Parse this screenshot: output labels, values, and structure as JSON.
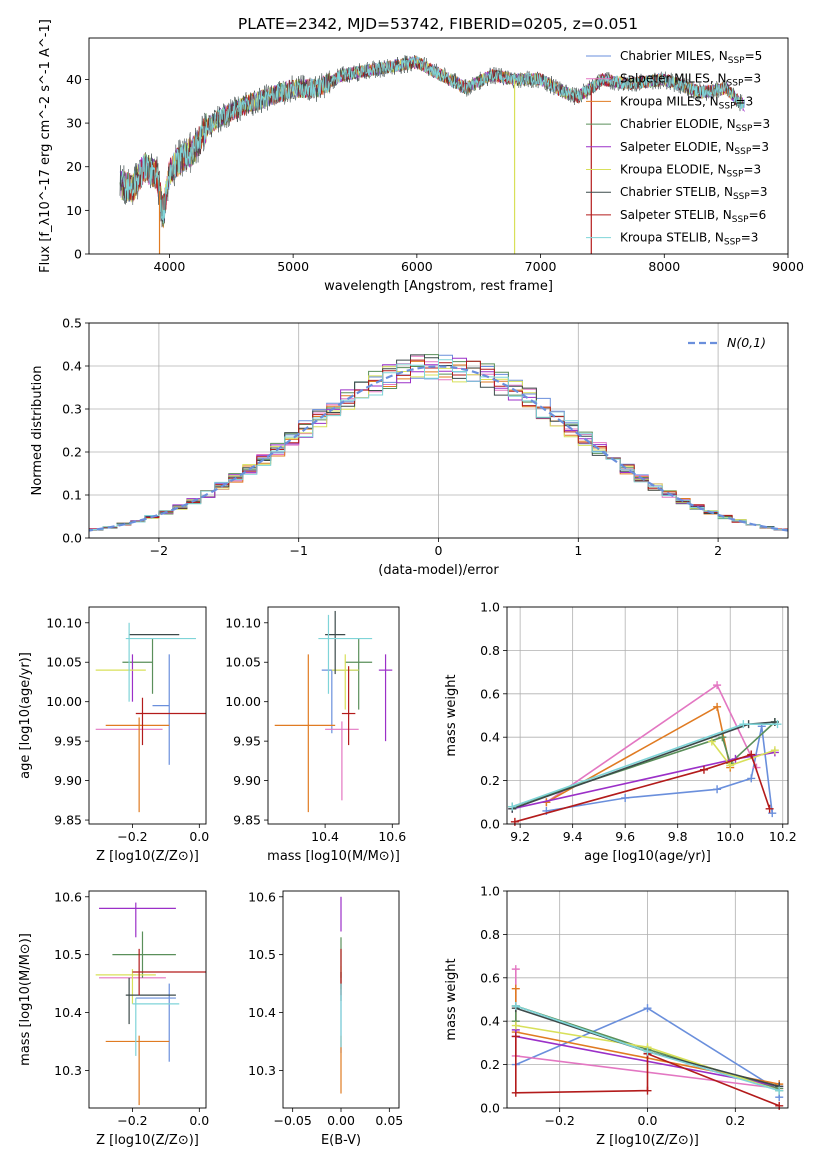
{
  "figure": {
    "title": "PLATE=2342, MJD=53742, FIBERID=0205, z=0.051"
  },
  "colors": [
    "#6a8fdc",
    "#e377c2",
    "#e07b22",
    "#5a8f5a",
    "#9b30c8",
    "#d8e05a",
    "#3c4a4a",
    "#b31b1b",
    "#7fd4d8"
  ],
  "chart_data": [
    {
      "id": "spectrum",
      "type": "line",
      "xlabel": "wavelength [Angstrom, rest frame]",
      "ylabel": "Flux [f_λ10^-17 erg cm^-2 s^-1 A^-1]",
      "xlim": [
        3350,
        9000
      ],
      "ylim": [
        0,
        49.5
      ],
      "xticks": [
        4000,
        5000,
        6000,
        7000,
        8000,
        9000
      ],
      "yticks": [
        0,
        10,
        20,
        30,
        40
      ],
      "grid": false,
      "legend_position": "top-right",
      "series": [
        {
          "name": "Chabrier MILES, N_SSP=5"
        },
        {
          "name": "Salpeter MILES, N_SSP=3"
        },
        {
          "name": "Kroupa MILES, N_SSP=3"
        },
        {
          "name": "Chabrier ELODIE, N_SSP=3"
        },
        {
          "name": "Salpeter ELODIE, N_SSP=3"
        },
        {
          "name": "Kroupa ELODIE, N_SSP=3"
        },
        {
          "name": "Chabrier STELIB, N_SSP=3"
        },
        {
          "name": "Salpeter STELIB, N_SSP=6"
        },
        {
          "name": "Kroupa STELIB, N_SSP=3"
        }
      ],
      "envelope": {
        "x": [
          3600,
          3700,
          3800,
          3900,
          3950,
          4000,
          4100,
          4200,
          4300,
          4400,
          4600,
          4800,
          5000,
          5200,
          5400,
          5600,
          5800,
          6000,
          6200,
          6400,
          6600,
          6800,
          7000,
          7200,
          7300,
          7500,
          7700,
          8000,
          8300,
          8500,
          8600,
          8650
        ],
        "y": [
          16,
          15,
          20,
          18,
          9,
          19,
          22,
          24,
          29,
          31,
          34,
          36,
          38,
          38,
          41,
          42,
          43,
          44,
          41,
          38,
          41,
          40,
          40,
          37,
          36,
          40,
          39,
          40,
          37,
          38,
          35,
          34
        ]
      },
      "spikes": [
        {
          "x": 3920,
          "y": 0
        },
        {
          "x": 6790,
          "y": 0
        },
        {
          "x": 7410,
          "y": 0
        }
      ]
    },
    {
      "id": "residual-histogram",
      "type": "line",
      "xlabel": "(data-model)/error",
      "ylabel": "Normed distribution",
      "xlim": [
        -2.5,
        2.5
      ],
      "ylim": [
        0,
        0.5
      ],
      "xticks": [
        -2,
        -1,
        0,
        1,
        2
      ],
      "yticks": [
        0,
        0.1,
        0.2,
        0.3,
        0.4,
        0.5
      ],
      "grid": true,
      "legend": "N(0,1)",
      "legend_position": "top-right",
      "bin_width": 0.1
    },
    {
      "id": "age-vs-z",
      "type": "scatter",
      "xlabel": "Z [log10(Z/Z⊙)]",
      "ylabel": "age [log10(age/yr)]",
      "xlim": [
        -0.33,
        0.02
      ],
      "ylim": [
        9.845,
        10.12
      ],
      "xticks": [
        -0.2,
        0.0
      ],
      "yticks": [
        9.85,
        9.9,
        9.95,
        10.0,
        10.05,
        10.1
      ],
      "grid": false,
      "series": [
        {
          "x": -0.09,
          "y": 9.995,
          "xerr": [
            0.05,
            0.0
          ],
          "yerr": [
            0.075,
            0.065
          ]
        },
        {
          "x": -0.2,
          "y": 9.965,
          "xerr": [
            0.11,
            0.09
          ],
          "yerr": [
            0,
            0
          ]
        },
        {
          "x": -0.18,
          "y": 9.97,
          "xerr": [
            0.1,
            0.09
          ],
          "yerr": [
            0.11,
            0.01
          ]
        },
        {
          "x": -0.14,
          "y": 10.05,
          "xerr": [
            0.09,
            0.0
          ],
          "yerr": [
            0.04,
            0.03
          ]
        },
        {
          "x": -0.2,
          "y": 10.05,
          "xerr": [
            0.0,
            0.0
          ],
          "yerr": [
            0.05,
            0.01
          ]
        },
        {
          "x": -0.22,
          "y": 10.04,
          "xerr": [
            0.09,
            0.06
          ],
          "yerr": [
            0,
            0
          ]
        },
        {
          "x": -0.14,
          "y": 10.085,
          "xerr": [
            0.07,
            0.08
          ],
          "yerr": [
            0,
            0
          ]
        },
        {
          "x": -0.17,
          "y": 9.985,
          "xerr": [
            0.02,
            0.2
          ],
          "yerr": [
            0.04,
            0.02
          ]
        },
        {
          "x": -0.21,
          "y": 10.08,
          "xerr": [
            0.01,
            0.2
          ],
          "yerr": [
            0.08,
            0.02
          ]
        }
      ]
    },
    {
      "id": "age-vs-mass",
      "type": "scatter",
      "xlabel": "mass [log10(M/M⊙)]",
      "ylabel": "",
      "xlim": [
        10.23,
        10.62
      ],
      "ylim": [
        9.845,
        10.12
      ],
      "xticks": [
        10.4,
        10.6
      ],
      "yticks": [
        9.85,
        9.9,
        9.95,
        10.0,
        10.05,
        10.1
      ],
      "grid": false,
      "series": [
        {
          "x": 10.42,
          "y": 10.04,
          "xerr": [
            0.03,
            0.08
          ],
          "yerr": [
            0.08,
            0.0
          ]
        },
        {
          "x": 10.45,
          "y": 9.965,
          "xerr": [
            0.05,
            0.05
          ],
          "yerr": [
            0.09,
            0.01
          ]
        },
        {
          "x": 10.35,
          "y": 9.97,
          "xerr": [
            0.1,
            0.08
          ],
          "yerr": [
            0.11,
            0.09
          ]
        },
        {
          "x": 10.5,
          "y": 10.05,
          "xerr": [
            0.04,
            0.04
          ],
          "yerr": [
            0.06,
            0.03
          ]
        },
        {
          "x": 10.58,
          "y": 10.04,
          "xerr": [
            0.02,
            0.02
          ],
          "yerr": [
            0.09,
            0.02
          ]
        },
        {
          "x": 10.46,
          "y": 10.04,
          "xerr": [
            0.04,
            0.04
          ],
          "yerr": [
            0.05,
            0.02
          ]
        },
        {
          "x": 10.43,
          "y": 10.085,
          "xerr": [
            0.03,
            0.03
          ],
          "yerr": [
            0.05,
            0.03
          ]
        },
        {
          "x": 10.47,
          "y": 9.985,
          "xerr": [
            0.02,
            0.02
          ],
          "yerr": [
            0.04,
            0.06
          ]
        },
        {
          "x": 10.41,
          "y": 10.08,
          "xerr": [
            0.03,
            0.13
          ],
          "yerr": [
            0.07,
            0.03
          ]
        }
      ]
    },
    {
      "id": "mass-weight-vs-age",
      "type": "line",
      "xlabel": "age [log10(age/yr)]",
      "ylabel": "mass weight",
      "xlim": [
        9.15,
        10.22
      ],
      "ylim": [
        0,
        1
      ],
      "xticks": [
        9.2,
        9.4,
        9.6,
        9.8,
        10.0,
        10.2
      ],
      "yticks": [
        0,
        0.2,
        0.4,
        0.6,
        0.8,
        1.0
      ],
      "grid": true,
      "series": [
        {
          "x": [
            9.3,
            9.6,
            9.95,
            10.08,
            10.12,
            10.16
          ],
          "y": [
            0.06,
            0.12,
            0.16,
            0.21,
            0.45,
            0.05
          ]
        },
        {
          "x": [
            9.3,
            9.95,
            10.1
          ],
          "y": [
            0.1,
            0.64,
            0.26
          ]
        },
        {
          "x": [
            9.3,
            9.95,
            10.0
          ],
          "y": [
            0.1,
            0.54,
            0.26
          ]
        },
        {
          "x": [
            9.17,
            9.97,
            10.0,
            10.17
          ],
          "y": [
            0.08,
            0.4,
            0.28,
            0.47
          ]
        },
        {
          "x": [
            9.17,
            10.02,
            10.17
          ],
          "y": [
            0.07,
            0.3,
            0.33
          ]
        },
        {
          "x": [
            9.93,
            10.0,
            10.17
          ],
          "y": [
            0.38,
            0.27,
            0.34
          ]
        },
        {
          "x": [
            9.17,
            10.07,
            10.17
          ],
          "y": [
            0.07,
            0.46,
            0.47
          ]
        },
        {
          "x": [
            9.18,
            9.9,
            10.08,
            10.15
          ],
          "y": [
            0.01,
            0.25,
            0.32,
            0.07
          ]
        },
        {
          "x": [
            9.17,
            10.05,
            10.18
          ],
          "y": [
            0.08,
            0.46,
            0.46
          ]
        }
      ]
    },
    {
      "id": "mass-vs-z",
      "type": "scatter",
      "xlabel": "Z [log10(Z/Z⊙)]",
      "ylabel": "mass [log10(M/M⊙)]",
      "xlim": [
        -0.33,
        0.02
      ],
      "ylim": [
        10.235,
        10.61
      ],
      "xticks": [
        -0.2,
        0.0
      ],
      "yticks": [
        10.3,
        10.4,
        10.5,
        10.6
      ],
      "grid": false,
      "series": [
        {
          "x": -0.09,
          "y": 10.425,
          "xerr": [
            0.1,
            0.02
          ],
          "yerr": [
            0.11,
            0.025
          ]
        },
        {
          "x": -0.19,
          "y": 10.46,
          "xerr": [
            0.11,
            0.09
          ],
          "yerr": [
            0,
            0
          ]
        },
        {
          "x": -0.18,
          "y": 10.35,
          "xerr": [
            0.1,
            0.09
          ],
          "yerr": [
            0.11,
            0.01
          ]
        },
        {
          "x": -0.17,
          "y": 10.5,
          "xerr": [
            0.09,
            0.1
          ],
          "yerr": [
            0.04,
            0.04
          ]
        },
        {
          "x": -0.19,
          "y": 10.58,
          "xerr": [
            0.11,
            0.12
          ],
          "yerr": [
            0.05,
            0.01
          ]
        },
        {
          "x": -0.2,
          "y": 10.465,
          "xerr": [
            0.11,
            0.07
          ],
          "yerr": [
            0.05,
            0.01
          ]
        },
        {
          "x": -0.21,
          "y": 10.43,
          "xerr": [
            0.01,
            0.14
          ],
          "yerr": [
            0.05,
            0.03
          ]
        },
        {
          "x": -0.18,
          "y": 10.47,
          "xerr": [
            0.02,
            0.2
          ],
          "yerr": [
            0.04,
            0.04
          ]
        },
        {
          "x": -0.19,
          "y": 10.415,
          "xerr": [
            0.01,
            0.13
          ],
          "yerr": [
            0.09,
            0.01
          ]
        }
      ]
    },
    {
      "id": "mass-vs-ebv",
      "type": "scatter",
      "xlabel": "E(B-V)",
      "ylabel": "",
      "xlim": [
        -0.06,
        0.06
      ],
      "ylim": [
        10.235,
        10.61
      ],
      "xticks": [
        -0.05,
        0.0,
        0.05
      ],
      "yticks": [
        10.3,
        10.4,
        10.5,
        10.6
      ],
      "grid": false,
      "series": [
        {
          "x": 0,
          "y": 10.43,
          "yerr": [
            0.1,
            0.02
          ]
        },
        {
          "x": 0,
          "y": 10.46,
          "yerr": [
            0.02,
            0.01
          ]
        },
        {
          "x": 0,
          "y": 10.35,
          "yerr": [
            0.09,
            0.01
          ]
        },
        {
          "x": 0,
          "y": 10.5,
          "yerr": [
            0.04,
            0.03
          ]
        },
        {
          "x": 0,
          "y": 10.58,
          "yerr": [
            0.04,
            0.02
          ]
        },
        {
          "x": 0,
          "y": 10.47,
          "yerr": [
            0.03,
            0.01
          ]
        },
        {
          "x": 0,
          "y": 10.45,
          "yerr": [
            0.03,
            0.02
          ]
        },
        {
          "x": 0,
          "y": 10.47,
          "yerr": [
            0.04,
            0.04
          ]
        },
        {
          "x": 0,
          "y": 10.42,
          "yerr": [
            0.08,
            0.03
          ]
        }
      ]
    },
    {
      "id": "mass-weight-vs-z",
      "type": "line",
      "xlabel": "Z [log10(Z/Z⊙)]",
      "ylabel": "mass weight",
      "xlim": [
        -0.32,
        0.32
      ],
      "ylim": [
        0,
        1
      ],
      "xticks": [
        -0.2,
        0.0,
        0.2
      ],
      "yticks": [
        0,
        0.2,
        0.4,
        0.6,
        0.8,
        1.0
      ],
      "grid": true,
      "series": [
        {
          "x": [
            -0.3,
            0.0,
            0.3,
            0.3
          ],
          "y": [
            0.2,
            0.46,
            0.08,
            0.05
          ]
        },
        {
          "x": [
            -0.3,
            -0.3,
            0.3
          ],
          "y": [
            0.64,
            0.24,
            0.09
          ]
        },
        {
          "x": [
            -0.3,
            -0.3,
            0.3
          ],
          "y": [
            0.55,
            0.35,
            0.11
          ]
        },
        {
          "x": [
            -0.3,
            -0.3,
            0.0,
            0.3
          ],
          "y": [
            0.4,
            0.47,
            0.27,
            0.09
          ]
        },
        {
          "x": [
            -0.3,
            -0.3,
            0.3
          ],
          "y": [
            0.36,
            0.33,
            0.1
          ]
        },
        {
          "x": [
            -0.3,
            0.0,
            0.3
          ],
          "y": [
            0.38,
            0.28,
            0.08
          ]
        },
        {
          "x": [
            -0.3,
            0.0,
            0.3
          ],
          "y": [
            0.46,
            0.26,
            0.1
          ]
        },
        {
          "x": [
            -0.3,
            -0.3,
            0.0,
            0.0,
            0.3
          ],
          "y": [
            0.33,
            0.07,
            0.08,
            0.25,
            0.01
          ]
        },
        {
          "x": [
            -0.3,
            0.0,
            0.3
          ],
          "y": [
            0.47,
            0.26,
            0.08
          ]
        }
      ]
    }
  ]
}
